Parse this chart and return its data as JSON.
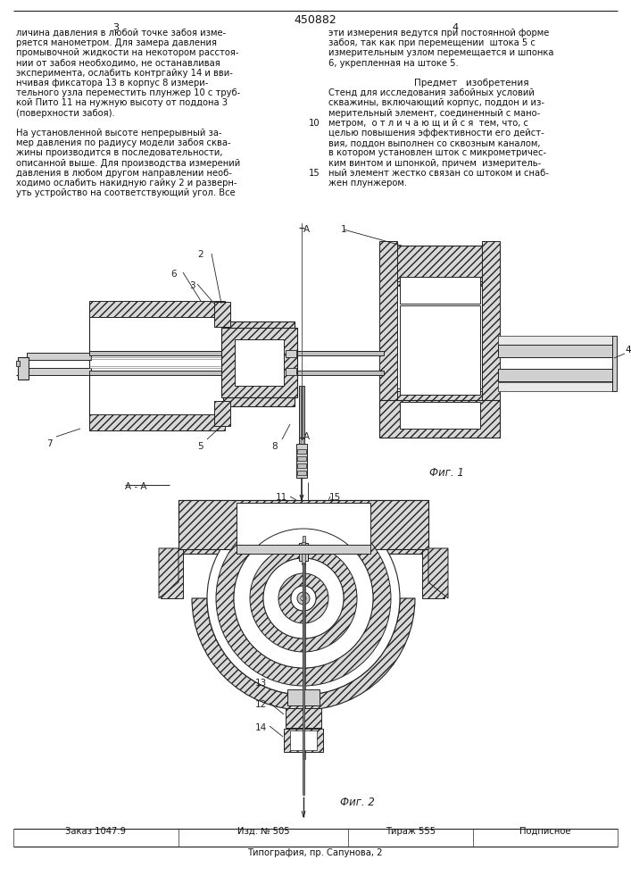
{
  "patent_number": "450882",
  "page_numbers": [
    "3",
    "4"
  ],
  "text_col1": [
    "личина давления в любой точке забоя изме-",
    "ряется манометром. Для замера давления",
    "промывочной жидкости на некотором расстоя-",
    "нии от забоя необходимо, не останавливая",
    "эксперимента, ослабить контргайку 14 и вви-",
    "нчивая фиксатора 13 в корпус 8 измери-",
    "тельного узла переместить плунжер 10 с труб-",
    "кой Пито 11 на нужную высоту от поддона 3",
    "(поверхности забоя).",
    "",
    "На установленной высоте непрерывный за-",
    "мер давления по радиусу модели забоя сква-",
    "жины производится в последовательности,",
    "описанной выше. Для производства измерений",
    "давления в любом другом направлении необ-",
    "ходимо ослабить накидную гайку 2 и разверн-",
    "уть устройство на соответствующий угол. Все"
  ],
  "text_col2_normal": [
    "эти измерения ведутся при постоянной форме",
    "забоя, так как при перемещении  штока 5 с",
    "измерительным узлом перемещается и шпонка",
    "6, укрепленная на штоке 5.",
    "",
    "",
    "Стенд для исследования забойных условий",
    "скважины, включающий корпус, поддон и из-",
    "мерительный элемент, соединенный с мано-",
    "метром,  о т л и ч а ю щ и й с я  тем, что, с",
    "целью повышения эффективности его дейст-",
    "вия, поддон выполнен со сквозным каналом,",
    "в котором установлен шток с микрометричес-",
    "ким винтом и шпонкой, причем  измеритель-",
    "ный элемент жестко связан со штоком и снаб-",
    "жен плунжером."
  ],
  "predmet_label": "Предмет   изобретения",
  "predmet_line_idx": 5,
  "fig1_label": "Фиг. 1",
  "fig2_label": "Фиг. 2",
  "aa_label": "А - А",
  "line_number_label": "10",
  "bottom_labels": [
    "Заказ 1047.9",
    "Изд. № 505",
    "Тираж 555",
    "Подписное"
  ],
  "typography_line": "Типография, пр. Сапунова, 2",
  "bg_color": "#ffffff",
  "text_color": "#111111",
  "hatch_color": "#444444",
  "draw_color": "#222222"
}
